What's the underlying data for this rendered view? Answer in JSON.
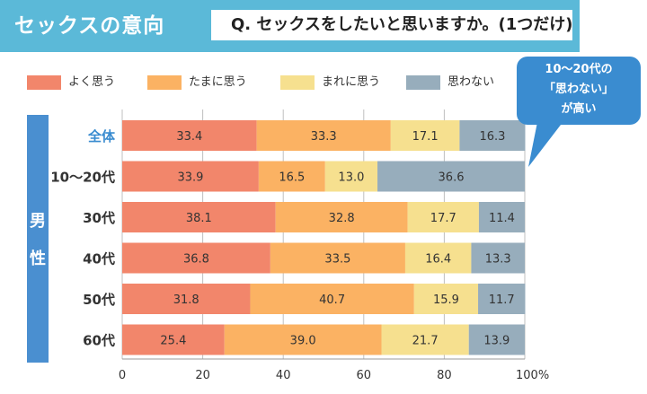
{
  "header": {
    "title": "セックスの意向",
    "question": "Q. セックスをしたいと思いますか。(1つだけ)"
  },
  "group_label": [
    "男",
    "性"
  ],
  "callout": {
    "lines": [
      "10〜20代の",
      "「思わない」",
      "が高い"
    ]
  },
  "colors": {
    "header": "#5bb9d8",
    "gender": "#4a8fd0",
    "callout": "#3a8cd0",
    "series": [
      "#f2866b",
      "#fbb263",
      "#f6e08f",
      "#97adbc"
    ]
  },
  "chart_data": {
    "type": "bar",
    "orientation": "horizontal",
    "stacked": true,
    "categories": [
      "全体",
      "10〜20代",
      "30代",
      "40代",
      "50代",
      "60代"
    ],
    "series": [
      {
        "name": "よく思う",
        "values": [
          33.4,
          33.9,
          38.1,
          36.8,
          31.8,
          25.4
        ]
      },
      {
        "name": "たまに思う",
        "values": [
          33.3,
          16.5,
          32.8,
          33.5,
          40.7,
          39.0
        ]
      },
      {
        "name": "まれに思う",
        "values": [
          17.1,
          13.0,
          17.7,
          16.4,
          15.9,
          21.7
        ]
      },
      {
        "name": "思わない",
        "values": [
          16.3,
          36.6,
          11.4,
          13.3,
          11.7,
          13.9
        ]
      }
    ],
    "x_ticks": [
      "0",
      "20",
      "40",
      "60",
      "80",
      "100%"
    ],
    "xlim": [
      0,
      100
    ],
    "legend_position": "top",
    "grid": true
  }
}
